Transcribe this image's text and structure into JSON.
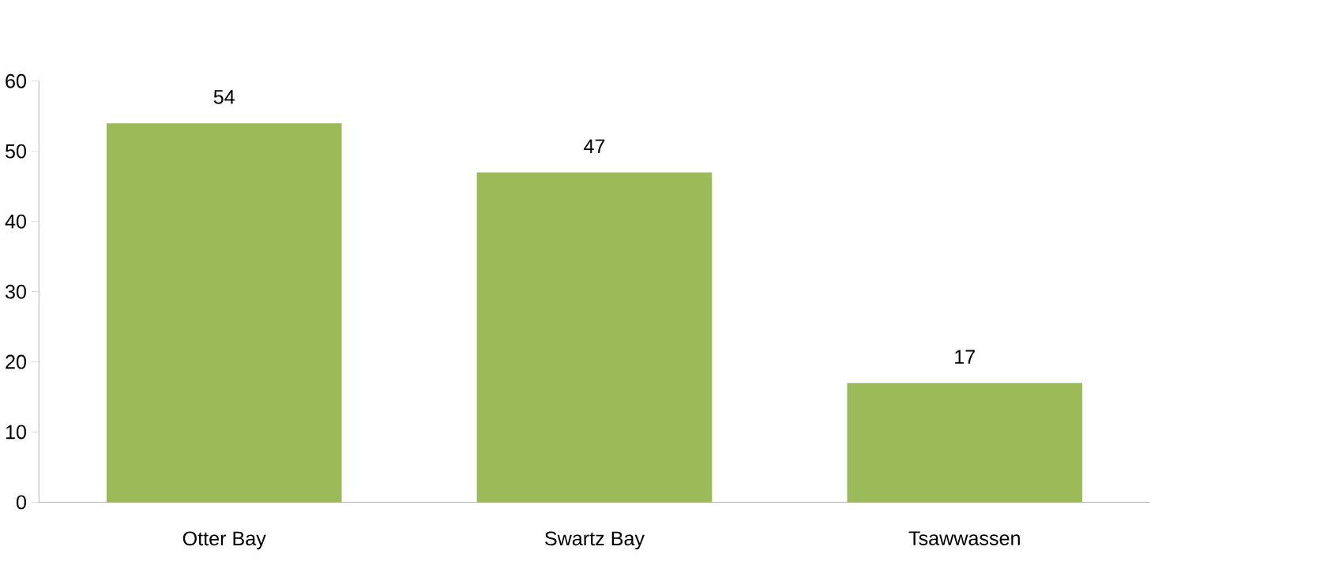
{
  "chart_data": {
    "type": "bar",
    "categories": [
      "Otter Bay",
      "Swartz Bay",
      "Tsawwassen"
    ],
    "values": [
      54,
      47,
      17
    ],
    "color": "#9bbb59",
    "ylim": [
      0,
      60
    ],
    "yticks": [
      0,
      10,
      20,
      30,
      40,
      50,
      60
    ],
    "data_labels": true
  }
}
